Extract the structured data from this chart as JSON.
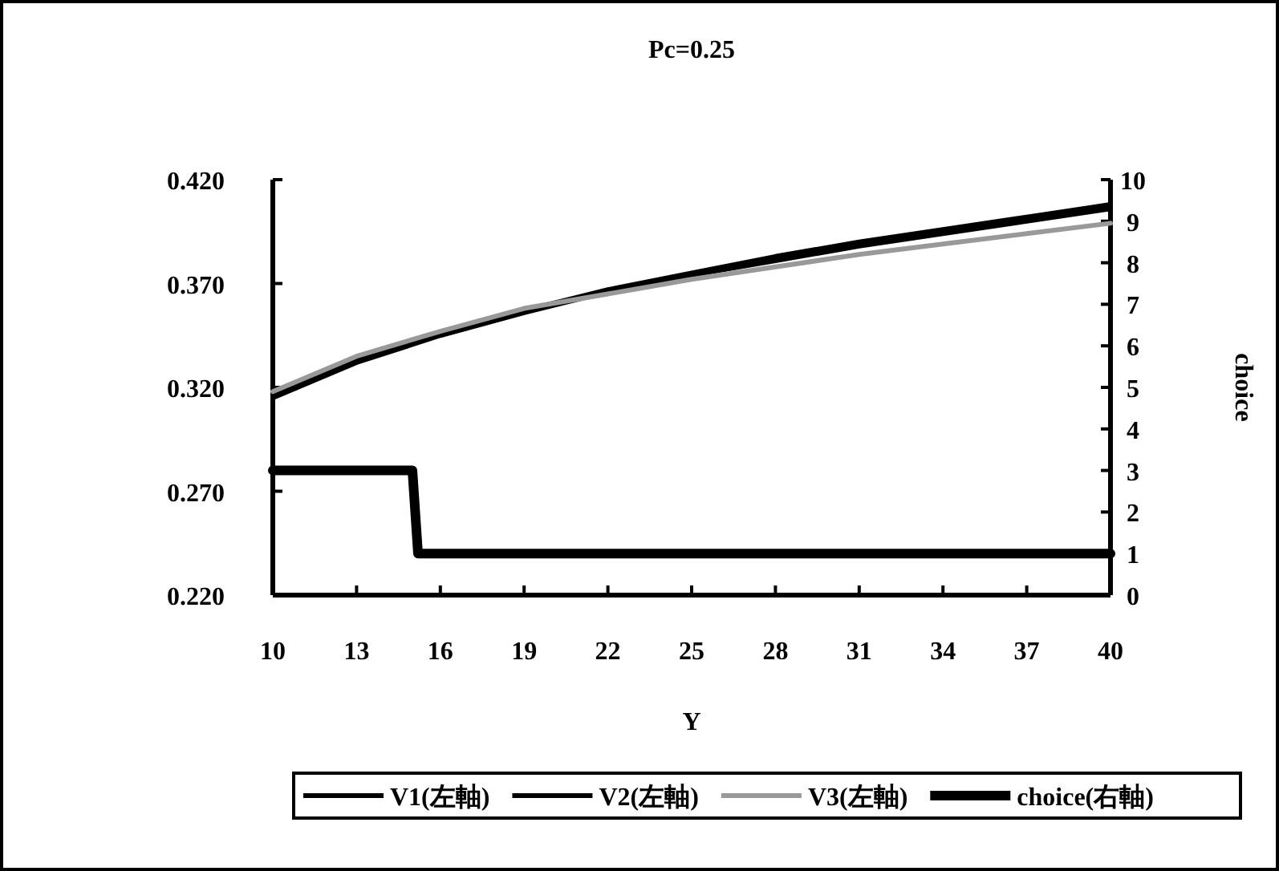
{
  "chart_data": {
    "type": "line",
    "title": "Pc=0.25",
    "xlabel": "Y",
    "y2label": "choice",
    "x": [
      10,
      13,
      16,
      19,
      22,
      25,
      28,
      31,
      34,
      37,
      40
    ],
    "series": [
      {
        "name": "V1(左軸)",
        "color": "#000000",
        "values": [
          0.316,
          0.333,
          0.346,
          0.357,
          0.367,
          0.375,
          0.383,
          0.39,
          0.396,
          0.402,
          0.408
        ]
      },
      {
        "name": "V2(左軸)",
        "color": "#000000",
        "values": [
          0.315,
          0.332,
          0.345,
          0.356,
          0.366,
          0.374,
          0.381,
          0.388,
          0.394,
          0.4,
          0.406
        ]
      },
      {
        "name": "V3(左軸)",
        "color": "#999999",
        "values": [
          0.318,
          0.335,
          0.347,
          0.358,
          0.365,
          0.372,
          0.378,
          0.384,
          0.389,
          0.394,
          0.399
        ]
      },
      {
        "name": "choice(右軸)",
        "color": "#000000",
        "axis": "y2",
        "x": [
          10,
          15,
          15.2,
          40
        ],
        "values": [
          3,
          3,
          1,
          1
        ]
      }
    ],
    "xlim": [
      10,
      40
    ],
    "xticks": [
      10,
      13,
      16,
      19,
      22,
      25,
      28,
      31,
      34,
      37,
      40
    ],
    "ylim": [
      0.22,
      0.42
    ],
    "yticks": [
      {
        "value": 0.22,
        "label": "0.220"
      },
      {
        "value": 0.27,
        "label": "0.270"
      },
      {
        "value": 0.32,
        "label": "0.320"
      },
      {
        "value": 0.37,
        "label": "0.370"
      },
      {
        "value": 0.42,
        "label": "0.420"
      }
    ],
    "y2lim": [
      0,
      10
    ],
    "y2ticks": [
      0,
      1,
      2,
      3,
      4,
      5,
      6,
      7,
      8,
      9,
      10
    ],
    "legend": "bottom",
    "grid": false,
    "marker": "none",
    "line_style": "solid"
  }
}
